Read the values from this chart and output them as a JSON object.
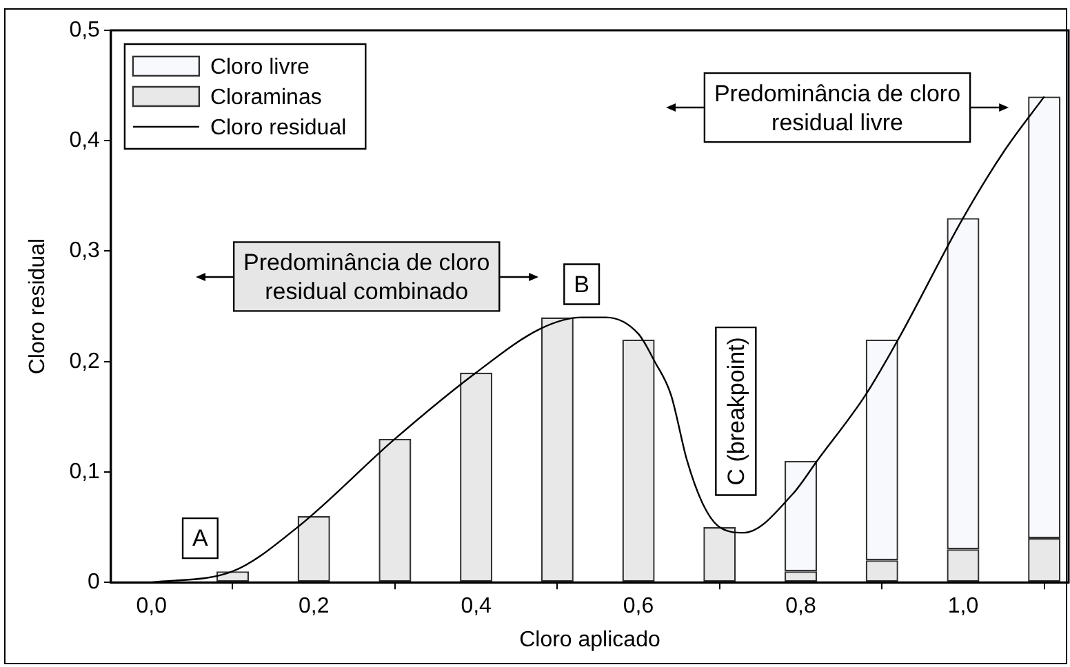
{
  "chart_data": {
    "type": "bar",
    "stacked": true,
    "xlabel": "Cloro aplicado",
    "ylabel": "Cloro residual",
    "x": [
      0.1,
      0.2,
      0.3,
      0.4,
      0.5,
      0.6,
      0.7,
      0.8,
      0.9,
      1.0,
      1.1
    ],
    "series": [
      {
        "name": "Cloraminas",
        "color": "#e8e8e8",
        "values": [
          0.01,
          0.06,
          0.13,
          0.19,
          0.24,
          0.22,
          0.05,
          0.01,
          0.02,
          0.03,
          0.04
        ]
      },
      {
        "name": "Cloro livre",
        "color": "#f7f9fc",
        "values": [
          null,
          null,
          null,
          null,
          null,
          null,
          null,
          0.1,
          0.2,
          0.3,
          0.4
        ]
      },
      {
        "name": "Cloro residual",
        "type": "line",
        "color": "#000000",
        "x": [
          0,
          0.1,
          0.18,
          0.3,
          0.4,
          0.48,
          0.53,
          0.56,
          0.6,
          0.62,
          0.64,
          0.66,
          0.68,
          0.7,
          0.73,
          0.79,
          0.82,
          0.88,
          0.92,
          1.0,
          1.05,
          1.1
        ],
        "values": [
          0,
          0.01,
          0.05,
          0.13,
          0.19,
          0.23,
          0.24,
          0.24,
          0.225,
          0.2,
          0.17,
          0.11,
          0.07,
          0.05,
          0.045,
          0.08,
          0.11,
          0.17,
          0.22,
          0.33,
          0.39,
          0.44
        ]
      }
    ],
    "xlim": [
      -0.05,
      1.13
    ],
    "xticks": [
      {
        "value": 0,
        "label": "0,0"
      },
      {
        "value": 0.2,
        "label": "0,2"
      },
      {
        "value": 0.4,
        "label": "0,4"
      },
      {
        "value": 0.6,
        "label": "0,6"
      },
      {
        "value": 0.8,
        "label": "0,8"
      },
      {
        "value": 1.0,
        "label": "1,0"
      }
    ],
    "ylim": [
      0,
      0.5
    ],
    "yticks": [
      {
        "value": 0,
        "label": "0"
      },
      {
        "value": 0.1,
        "label": "0,1"
      },
      {
        "value": 0.2,
        "label": "0,2"
      },
      {
        "value": 0.3,
        "label": "0,3"
      },
      {
        "value": 0.4,
        "label": "0,4"
      },
      {
        "value": 0.5,
        "label": "0,5"
      }
    ],
    "legend": "top left",
    "marker": "none",
    "line_style": "solid",
    "annotations": [
      {
        "text": "A",
        "x": 0.06,
        "y": 0.04
      },
      {
        "text": "B",
        "x": 0.53,
        "y": 0.27
      },
      "C (breakpoint)",
      "Predominância de cloro residual combinado",
      "Predominância de cloro residual livre"
    ]
  }
}
